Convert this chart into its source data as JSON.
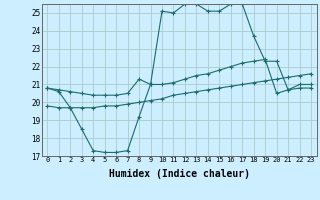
{
  "title": "",
  "xlabel": "Humidex (Indice chaleur)",
  "bg_color": "#cceeff",
  "grid_color": "#aacccc",
  "line_color": "#1a6b6b",
  "xlim": [
    -0.5,
    23.5
  ],
  "ylim": [
    17,
    25.5
  ],
  "yticks": [
    17,
    18,
    19,
    20,
    21,
    22,
    23,
    24,
    25
  ],
  "xticks": [
    0,
    1,
    2,
    3,
    4,
    5,
    6,
    7,
    8,
    9,
    10,
    11,
    12,
    13,
    14,
    15,
    16,
    17,
    18,
    19,
    20,
    21,
    22,
    23
  ],
  "line1_x": [
    0,
    1,
    2,
    3,
    4,
    5,
    6,
    7,
    8,
    9,
    10,
    11,
    12,
    13,
    14,
    15,
    16,
    17,
    18,
    19,
    20,
    21,
    22,
    23
  ],
  "line1_y": [
    20.8,
    20.6,
    19.7,
    18.5,
    17.3,
    17.2,
    17.2,
    17.3,
    19.2,
    21.0,
    25.1,
    25.0,
    25.5,
    25.5,
    25.1,
    25.1,
    25.5,
    25.5,
    23.7,
    22.3,
    22.3,
    20.7,
    20.8,
    20.8
  ],
  "line2_x": [
    0,
    1,
    2,
    3,
    4,
    5,
    6,
    7,
    8,
    9,
    10,
    11,
    12,
    13,
    14,
    15,
    16,
    17,
    18,
    19,
    20,
    21,
    22,
    23
  ],
  "line2_y": [
    20.8,
    20.7,
    20.6,
    20.5,
    20.4,
    20.4,
    20.4,
    20.5,
    21.3,
    21.0,
    21.0,
    21.1,
    21.3,
    21.5,
    21.6,
    21.8,
    22.0,
    22.2,
    22.3,
    22.4,
    20.5,
    20.7,
    21.0,
    21.0
  ],
  "line3_x": [
    0,
    1,
    2,
    3,
    4,
    5,
    6,
    7,
    8,
    9,
    10,
    11,
    12,
    13,
    14,
    15,
    16,
    17,
    18,
    19,
    20,
    21,
    22,
    23
  ],
  "line3_y": [
    19.8,
    19.7,
    19.7,
    19.7,
    19.7,
    19.8,
    19.8,
    19.9,
    20.0,
    20.1,
    20.2,
    20.4,
    20.5,
    20.6,
    20.7,
    20.8,
    20.9,
    21.0,
    21.1,
    21.2,
    21.3,
    21.4,
    21.5,
    21.6
  ]
}
